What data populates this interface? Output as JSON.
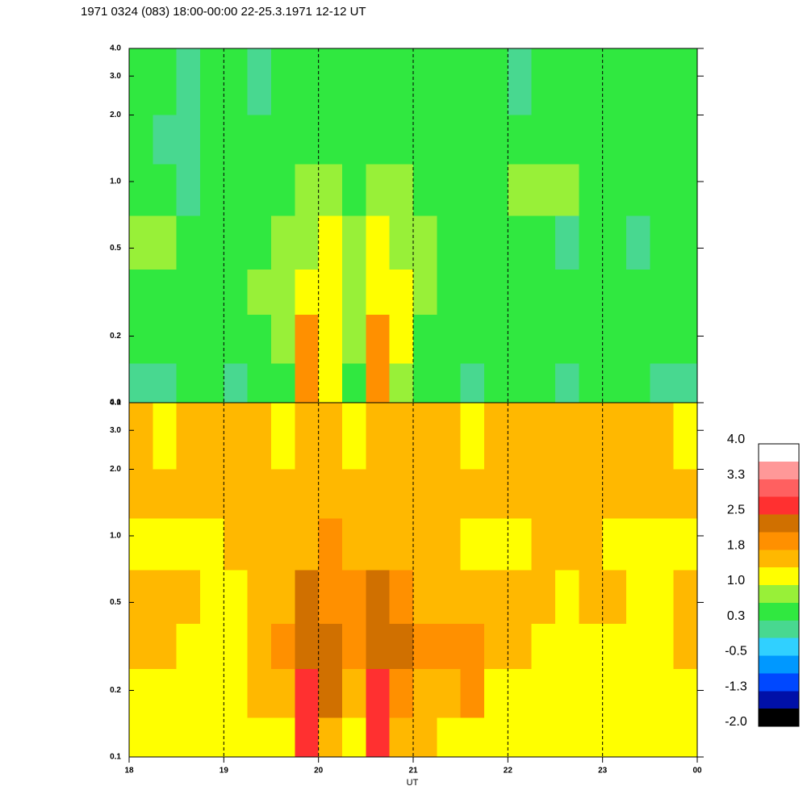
{
  "chart_data": {
    "type": "heatmap",
    "title": "1971 0324 (083) 18:00-00:00 22-25.3.1971  12-12 UT",
    "x_label": "UT",
    "xlim": [
      18,
      24
    ],
    "xticks": [
      18,
      19,
      20,
      21,
      22,
      23,
      {
        "value": 24,
        "label": "00"
      }
    ],
    "ylim": [
      0.1,
      4
    ],
    "yticks": [
      0.1,
      0.2,
      0.5,
      {
        "value": 1,
        "label": "1.0"
      },
      {
        "value": 2,
        "label": "2.0"
      },
      {
        "value": 3,
        "label": "3.0"
      },
      {
        "value": 4,
        "label": "4.0"
      }
    ],
    "ylog": true,
    "grid": true,
    "x_bins": [
      18,
      18.25,
      18.5,
      18.75,
      19,
      19.25,
      19.5,
      19.75,
      20,
      20.25,
      20.5,
      20.75,
      21,
      21.25,
      21.5,
      21.75,
      22,
      22.25,
      22.5,
      22.75,
      23,
      23.25,
      23.5,
      23.75,
      24
    ],
    "y_bins": [
      0.1,
      0.15,
      0.25,
      0.4,
      0.7,
      1.2,
      2,
      4
    ],
    "panels": [
      {
        "values": [
          [
            0.0,
            0.0,
            0.4,
            0.4,
            0.0,
            0.4,
            0.4,
            2.0,
            1.2,
            0.4,
            2.0,
            0.8,
            0.4,
            0.4,
            0.0,
            0.4,
            0.4,
            0.4,
            0.0,
            0.4,
            0.4,
            0.4,
            0.0,
            0.0
          ],
          [
            0.4,
            0.4,
            0.4,
            0.4,
            0.4,
            0.4,
            0.8,
            2.0,
            1.2,
            0.8,
            2.0,
            1.2,
            0.4,
            0.4,
            0.4,
            0.4,
            0.4,
            0.4,
            0.4,
            0.4,
            0.4,
            0.4,
            0.4,
            0.4
          ],
          [
            0.4,
            0.4,
            0.4,
            0.4,
            0.4,
            0.8,
            0.8,
            1.2,
            1.2,
            0.8,
            1.2,
            1.2,
            0.8,
            0.4,
            0.4,
            0.4,
            0.4,
            0.4,
            0.4,
            0.4,
            0.4,
            0.4,
            0.4,
            0.4
          ],
          [
            0.8,
            0.8,
            0.4,
            0.4,
            0.4,
            0.4,
            0.8,
            0.8,
            1.2,
            0.8,
            1.2,
            0.8,
            0.8,
            0.4,
            0.4,
            0.4,
            0.4,
            0.4,
            0.0,
            0.4,
            0.4,
            0.0,
            0.4,
            0.4
          ],
          [
            0.4,
            0.4,
            0.0,
            0.4,
            0.4,
            0.4,
            0.4,
            0.8,
            0.8,
            0.4,
            0.8,
            0.8,
            0.4,
            0.4,
            0.4,
            0.4,
            0.8,
            0.8,
            0.8,
            0.4,
            0.4,
            0.4,
            0.4,
            0.4
          ],
          [
            0.4,
            0.0,
            0.0,
            0.4,
            0.4,
            0.4,
            0.4,
            0.4,
            0.4,
            0.4,
            0.4,
            0.4,
            0.4,
            0.4,
            0.4,
            0.4,
            0.4,
            0.4,
            0.4,
            0.4,
            0.4,
            0.4,
            0.4,
            0.4
          ],
          [
            0.4,
            0.4,
            0.0,
            0.4,
            0.4,
            0.0,
            0.4,
            0.4,
            0.4,
            0.4,
            0.4,
            0.4,
            0.4,
            0.4,
            0.4,
            0.4,
            0.0,
            0.4,
            0.4,
            0.4,
            0.4,
            0.4,
            0.4,
            0.4
          ]
        ]
      },
      {
        "values": [
          [
            1.2,
            1.2,
            1.2,
            1.2,
            1.2,
            1.2,
            1.2,
            2.6,
            1.5,
            1.2,
            2.6,
            1.5,
            1.5,
            1.2,
            1.2,
            1.2,
            1.2,
            1.2,
            1.2,
            1.2,
            1.2,
            1.2,
            1.2,
            1.2
          ],
          [
            1.2,
            1.2,
            1.2,
            1.2,
            1.2,
            1.5,
            1.5,
            2.6,
            2.3,
            1.5,
            2.6,
            1.9,
            1.5,
            1.5,
            1.9,
            1.2,
            1.2,
            1.2,
            1.2,
            1.2,
            1.2,
            1.2,
            1.2,
            1.2
          ],
          [
            1.5,
            1.5,
            1.2,
            1.2,
            1.2,
            1.5,
            1.9,
            2.3,
            2.3,
            1.9,
            2.3,
            2.3,
            1.9,
            1.9,
            1.9,
            1.5,
            1.5,
            1.2,
            1.2,
            1.2,
            1.2,
            1.2,
            1.2,
            1.5
          ],
          [
            1.5,
            1.5,
            1.5,
            1.2,
            1.2,
            1.5,
            1.5,
            2.3,
            1.9,
            1.9,
            2.3,
            1.9,
            1.5,
            1.5,
            1.5,
            1.5,
            1.5,
            1.5,
            1.2,
            1.5,
            1.5,
            1.2,
            1.2,
            1.5
          ],
          [
            1.2,
            1.2,
            1.2,
            1.2,
            1.5,
            1.5,
            1.5,
            1.5,
            1.9,
            1.5,
            1.5,
            1.5,
            1.5,
            1.5,
            1.2,
            1.2,
            1.2,
            1.5,
            1.5,
            1.5,
            1.2,
            1.2,
            1.2,
            1.2
          ],
          [
            1.5,
            1.5,
            1.5,
            1.5,
            1.5,
            1.5,
            1.5,
            1.5,
            1.5,
            1.5,
            1.5,
            1.5,
            1.5,
            1.5,
            1.5,
            1.5,
            1.5,
            1.5,
            1.5,
            1.5,
            1.5,
            1.5,
            1.5,
            1.5
          ],
          [
            1.5,
            1.2,
            1.5,
            1.5,
            1.5,
            1.5,
            1.2,
            1.5,
            1.5,
            1.2,
            1.5,
            1.5,
            1.5,
            1.5,
            1.2,
            1.5,
            1.5,
            1.5,
            1.5,
            1.5,
            1.5,
            1.5,
            1.5,
            1.2
          ]
        ]
      }
    ],
    "colorbar": {
      "lim": [
        -2,
        4
      ],
      "ticks": [
        {
          "value": 4,
          "label": "4.0"
        },
        {
          "value": 3.25,
          "label": "3.3"
        },
        {
          "value": 2.5,
          "label": "2.5"
        },
        {
          "value": 1.75,
          "label": "1.8"
        },
        {
          "value": 1,
          "label": "1.0"
        },
        {
          "value": 0.25,
          "label": "0.3"
        },
        -0.5,
        {
          "value": -1.25,
          "label": "-1.3"
        },
        {
          "value": -2,
          "label": "-2.0"
        }
      ],
      "colors": [
        "#000000",
        "#0010a8",
        "#0048ff",
        "#0098ff",
        "#30d0ff",
        "#48d890",
        "#30e840",
        "#98f038",
        "#ffff00",
        "#ffb800",
        "#ff9000",
        "#d07000",
        "#ff3030",
        "#ff6060",
        "#ff9898",
        "#ffffff"
      ]
    }
  }
}
